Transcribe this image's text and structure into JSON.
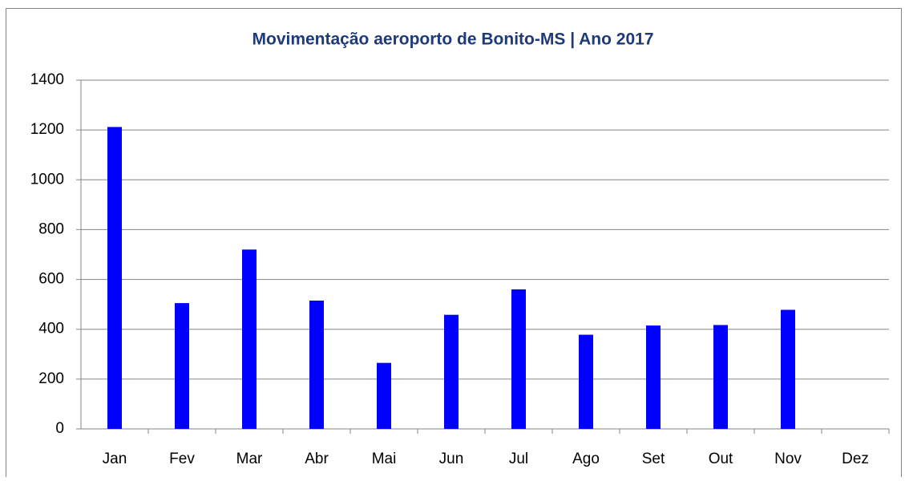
{
  "chart_data": {
    "type": "bar",
    "title": "Movimentação aeroporto de Bonito-MS | Ano 2017",
    "categories": [
      "Jan",
      "Fev",
      "Mar",
      "Abr",
      "Mai",
      "Jun",
      "Jul",
      "Ago",
      "Set",
      "Out",
      "Nov",
      "Dez"
    ],
    "values": [
      1212,
      505,
      720,
      515,
      265,
      458,
      560,
      378,
      415,
      417,
      478,
      null
    ],
    "color": "#0000ff",
    "ylim": [
      0,
      1400
    ],
    "yticks": [
      0,
      200,
      400,
      600,
      800,
      1000,
      1200,
      1400
    ],
    "grid": true
  }
}
